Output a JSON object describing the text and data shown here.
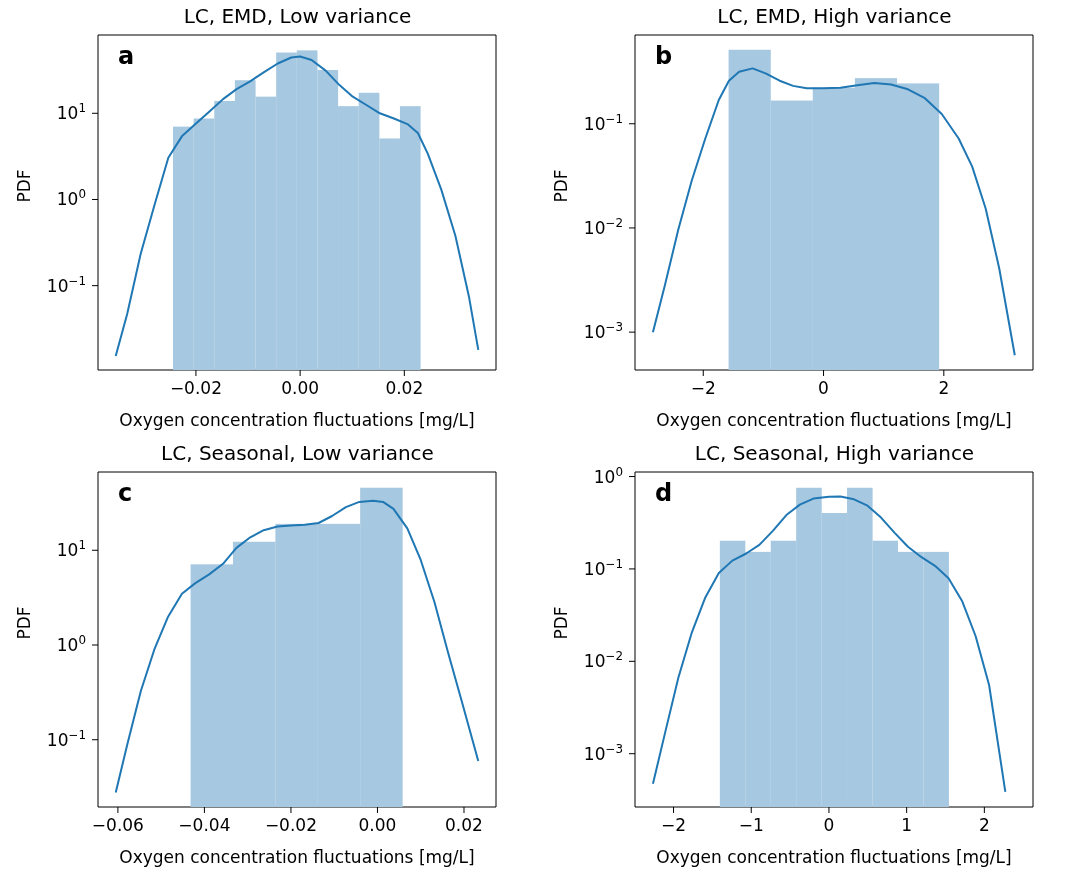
{
  "chart_data": [
    {
      "type": "histogram",
      "title": "LC, EMD, Low variance",
      "xlabel": "Oxygen concentration fluctuations [mg/L]",
      "ylabel": "PDF",
      "annotations": [
        "a"
      ],
      "log": "y",
      "color": "#a6c8e1",
      "bins": [
        -0.0244,
        -0.02044,
        -0.01648,
        -0.01252,
        -0.00856,
        -0.0046,
        -0.00064,
        0.00332,
        0.00728,
        0.01124,
        0.0152,
        0.01916,
        0.02312
      ],
      "values": [
        7.0,
        8.7,
        13.9,
        24.2,
        15.6,
        50.7,
        53.7,
        31.8,
        12.1,
        17.3,
        5.1,
        12.1
      ],
      "series": [
        {
          "type": "line",
          "color": "#1f77b4",
          "x": [
            -0.0354,
            -0.0332,
            -0.0306,
            -0.0279,
            -0.0253,
            -0.0227,
            -0.0201,
            -0.0174,
            -0.0148,
            -0.0122,
            -0.0096,
            -0.007,
            -0.0043,
            -0.0017,
            0,
            0.0022,
            0.0049,
            0.0075,
            0.0101,
            0.0128,
            0.0153,
            0.018,
            0.0206,
            0.0226,
            0.0245,
            0.0271,
            0.0298,
            0.0324,
            0.0342
          ],
          "values": [
            0.0153,
            0.0468,
            0.235,
            0.887,
            3.05,
            5.4,
            7.5,
            10.5,
            14.6,
            19.1,
            23.5,
            29.8,
            37.8,
            44.4,
            45.7,
            41.6,
            31.3,
            21.4,
            15.6,
            12.4,
            10,
            8.7,
            7.5,
            5.9,
            3.4,
            1.3,
            0.38,
            0.075,
            0.018
          ]
        }
      ],
      "xlim": [
        -0.0388,
        0.0376
      ],
      "ylim": [
        0.0105,
        81
      ],
      "xticks": [
        {
          "value": -0.02,
          "label": "−0.02"
        },
        {
          "value": 0,
          "label": "0.00"
        },
        {
          "value": 0.02,
          "label": "0.02"
        }
      ],
      "yticks": [
        {
          "value": 0.1,
          "label": "10$^{−1}$"
        },
        {
          "value": 1,
          "label": "10$^{0}$"
        },
        {
          "value": 10,
          "label": "10$^{1}$"
        }
      ]
    },
    {
      "type": "histogram",
      "title": "LC, EMD, High variance",
      "xlabel": "Oxygen concentration fluctuations [mg/L]",
      "ylabel": "PDF",
      "annotations": [
        "b"
      ],
      "log": "y",
      "color": "#a6c8e1",
      "bins": [
        -1.579,
        -0.879,
        -0.179,
        0.521,
        1.221,
        1.921
      ],
      "values": [
        0.513,
        0.167,
        0.222,
        0.274,
        0.244
      ],
      "series": [
        {
          "type": "line",
          "color": "#1f77b4",
          "x": [
            -2.837,
            -2.64,
            -2.416,
            -2.191,
            -1.966,
            -1.742,
            -1.573,
            -1.404,
            -1.18,
            -0.955,
            -0.73,
            -0.506,
            -0.281,
            0,
            0.281,
            0.562,
            0.843,
            1.124,
            1.404,
            1.685,
            1.966,
            2.247,
            2.472,
            2.697,
            2.921,
            3.18
          ],
          "values": [
            0.001,
            0.00278,
            0.0096,
            0.0285,
            0.0722,
            0.169,
            0.259,
            0.315,
            0.34,
            0.303,
            0.259,
            0.231,
            0.219,
            0.219,
            0.222,
            0.234,
            0.246,
            0.238,
            0.214,
            0.176,
            0.124,
            0.0722,
            0.0388,
            0.0153,
            0.0041,
            0.0006
          ]
        }
      ],
      "xlim": [
        -3.135,
        3.483
      ],
      "ylim": [
        0.000433,
        0.711
      ],
      "xticks": [
        {
          "value": -2,
          "label": "−2"
        },
        {
          "value": 0,
          "label": "0"
        },
        {
          "value": 2,
          "label": "2"
        }
      ],
      "yticks": [
        {
          "value": 0.001,
          "label": "10$^{−3}$"
        },
        {
          "value": 0.01,
          "label": "10$^{−2}$"
        },
        {
          "value": 0.1,
          "label": "10$^{−1}$"
        }
      ]
    },
    {
      "type": "histogram",
      "title": "LC, Seasonal, Low variance",
      "xlabel": "Oxygen concentration fluctuations [mg/L]",
      "ylabel": "PDF",
      "annotations": [
        "c"
      ],
      "log": "y",
      "color": "#a6c8e1",
      "bins": [
        -0.0432,
        -0.0334,
        -0.0236,
        -0.0138,
        -0.004,
        0.0058
      ],
      "values": [
        7.1,
        12.3,
        19.0,
        19.0,
        45.7
      ],
      "series": [
        {
          "type": "line",
          "color": "#1f77b4",
          "x": [
            -0.0605,
            -0.0578,
            -0.0547,
            -0.0515,
            -0.0484,
            -0.0452,
            -0.0421,
            -0.0389,
            -0.0357,
            -0.0326,
            -0.0294,
            -0.0263,
            -0.0231,
            -0.02,
            -0.0168,
            -0.0136,
            -0.0105,
            -0.0073,
            -0.0042,
            -0.001,
            0.0013,
            0.0037,
            0.0069,
            0.01,
            0.0132,
            0.0163,
            0.0195,
            0.0233
          ],
          "values": [
            0.0278,
            0.0902,
            0.327,
            0.918,
            1.99,
            3.48,
            4.5,
            5.57,
            7.2,
            10.6,
            13.7,
            16.3,
            17.8,
            18.2,
            18.6,
            19.4,
            23.0,
            28.5,
            32.4,
            33.3,
            32.4,
            27.3,
            17.0,
            7.9,
            2.81,
            0.84,
            0.253,
            0.0597
          ]
        }
      ],
      "xlim": [
        -0.0646,
        0.0274
      ],
      "ylim": [
        0.0195,
        67
      ],
      "xticks": [
        {
          "value": -0.06,
          "label": "−0.06"
        },
        {
          "value": -0.04,
          "label": "−0.04"
        },
        {
          "value": -0.02,
          "label": "−0.02"
        },
        {
          "value": 0,
          "label": "0.00"
        },
        {
          "value": 0.02,
          "label": "0.02"
        }
      ],
      "yticks": [
        {
          "value": 0.1,
          "label": "10$^{−1}$"
        },
        {
          "value": 1,
          "label": "10$^{0}$"
        },
        {
          "value": 10,
          "label": "10$^{1}$"
        }
      ]
    },
    {
      "type": "histogram",
      "title": "LC, Seasonal, High variance",
      "xlabel": "Oxygen concentration fluctuations [mg/L]",
      "ylabel": "PDF",
      "annotations": [
        "d"
      ],
      "log": "y",
      "color": "#a6c8e1",
      "bins": [
        -1.404,
        -1.077,
        -0.749,
        -0.422,
        -0.094,
        0.233,
        0.561,
        0.888,
        1.216,
        1.543
      ],
      "values": [
        0.202,
        0.153,
        0.202,
        0.756,
        0.403,
        0.756,
        0.202,
        0.153,
        0.153
      ],
      "series": [
        {
          "type": "line",
          "color": "#1f77b4",
          "x": [
            -2.265,
            -2.113,
            -1.939,
            -1.765,
            -1.591,
            -1.417,
            -1.243,
            -1.07,
            -0.896,
            -0.722,
            -0.548,
            -0.374,
            -0.2,
            0,
            0.148,
            0.322,
            0.496,
            0.67,
            0.843,
            1.017,
            1.191,
            1.365,
            1.539,
            1.713,
            1.887,
            2.061,
            2.27
          ],
          "values": [
            0.000472,
            0.00163,
            0.00659,
            0.0205,
            0.0492,
            0.0906,
            0.123,
            0.146,
            0.182,
            0.258,
            0.383,
            0.497,
            0.577,
            0.603,
            0.608,
            0.567,
            0.484,
            0.36,
            0.247,
            0.174,
            0.134,
            0.108,
            0.0795,
            0.045,
            0.0188,
            0.00554,
            0.000386
          ]
        }
      ],
      "xlim": [
        -2.496,
        2.626
      ],
      "ylim": [
        0.000265,
        1.12
      ],
      "xticks": [
        {
          "value": -2,
          "label": "−2"
        },
        {
          "value": -1,
          "label": "−1"
        },
        {
          "value": 0,
          "label": "0"
        },
        {
          "value": 1,
          "label": "1"
        },
        {
          "value": 2,
          "label": "2"
        }
      ],
      "yticks": [
        {
          "value": 0.001,
          "label": "10$^{−3}$"
        },
        {
          "value": 0.01,
          "label": "10$^{−2}$"
        },
        {
          "value": 0.1,
          "label": "10$^{−1}$"
        },
        {
          "value": 1,
          "label": "10$^{0}$"
        }
      ]
    }
  ]
}
